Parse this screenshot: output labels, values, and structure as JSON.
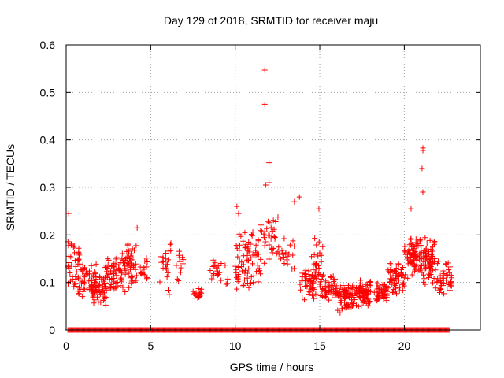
{
  "chart_data": {
    "type": "scatter",
    "title": "Day 129 of 2018, SRMTID for receiver maju",
    "xlabel": "GPS time / hours",
    "ylabel": "SRMTID / TECUs",
    "xlim": [
      0,
      24.5
    ],
    "ylim": [
      0,
      0.6
    ],
    "xticks": [
      0,
      5,
      10,
      15,
      20
    ],
    "xtick_labels": [
      "0",
      "5",
      "10",
      "15",
      "20"
    ],
    "yticks": [
      0,
      0.1,
      0.2,
      0.3,
      0.4,
      0.5,
      0.6
    ],
    "ytick_labels": [
      "0",
      "0.1",
      "0.2",
      "0.3",
      "0.4",
      "0.5",
      "0.6"
    ],
    "grid": true,
    "marker": "+",
    "series": [
      {
        "name": "SRMTID",
        "color": "#ff0000",
        "clusters": [
          {
            "x": [
              0.1,
              0.8
            ],
            "y": [
              0.08,
              0.2
            ],
            "n": 40
          },
          {
            "x": [
              0.7,
              1.8
            ],
            "y": [
              0.06,
              0.15
            ],
            "n": 55
          },
          {
            "x": [
              1.5,
              2.4
            ],
            "y": [
              0.05,
              0.12
            ],
            "n": 60
          },
          {
            "x": [
              2.3,
              3.3
            ],
            "y": [
              0.07,
              0.16
            ],
            "n": 60
          },
          {
            "x": [
              3.3,
              4.2
            ],
            "y": [
              0.07,
              0.19
            ],
            "n": 55
          },
          {
            "x": [
              4.2,
              4.8
            ],
            "y": [
              0.09,
              0.16
            ],
            "n": 15
          },
          {
            "x": [
              5.5,
              6.2
            ],
            "y": [
              0.05,
              0.2
            ],
            "n": 22
          },
          {
            "x": [
              6.5,
              7.0
            ],
            "y": [
              0.09,
              0.19
            ],
            "n": 12
          },
          {
            "x": [
              7.5,
              8.0
            ],
            "y": [
              0.06,
              0.09
            ],
            "n": 22
          },
          {
            "x": [
              8.5,
              9.2
            ],
            "y": [
              0.09,
              0.15
            ],
            "n": 20
          },
          {
            "x": [
              9.2,
              10.2
            ],
            "y": [
              0.08,
              0.14
            ],
            "n": 12
          },
          {
            "x": [
              10.0,
              11.5
            ],
            "y": [
              0.06,
              0.22
            ],
            "n": 70
          },
          {
            "x": [
              11.5,
              12.6
            ],
            "y": [
              0.13,
              0.25
            ],
            "n": 35
          },
          {
            "x": [
              12.5,
              13.5
            ],
            "y": [
              0.1,
              0.2
            ],
            "n": 20
          },
          {
            "x": [
              13.8,
              14.8
            ],
            "y": [
              0.05,
              0.15
            ],
            "n": 50
          },
          {
            "x": [
              14.5,
              15.2
            ],
            "y": [
              0.05,
              0.2
            ],
            "n": 25
          },
          {
            "x": [
              15.0,
              16.0
            ],
            "y": [
              0.05,
              0.12
            ],
            "n": 50
          },
          {
            "x": [
              16.0,
              17.0
            ],
            "y": [
              0.03,
              0.1
            ],
            "n": 70
          },
          {
            "x": [
              17.0,
              18.0
            ],
            "y": [
              0.04,
              0.11
            ],
            "n": 80
          },
          {
            "x": [
              18.2,
              19.0
            ],
            "y": [
              0.05,
              0.1
            ],
            "n": 45
          },
          {
            "x": [
              19.0,
              20.0
            ],
            "y": [
              0.06,
              0.15
            ],
            "n": 55
          },
          {
            "x": [
              20.0,
              21.0
            ],
            "y": [
              0.1,
              0.2
            ],
            "n": 80
          },
          {
            "x": [
              21.0,
              21.8
            ],
            "y": [
              0.08,
              0.2
            ],
            "n": 70
          },
          {
            "x": [
              21.8,
              22.8
            ],
            "y": [
              0.06,
              0.15
            ],
            "n": 45
          }
        ],
        "outliers": [
          {
            "x": 0.15,
            "y": 0.245
          },
          {
            "x": 4.2,
            "y": 0.215
          },
          {
            "x": 10.1,
            "y": 0.26
          },
          {
            "x": 10.2,
            "y": 0.245
          },
          {
            "x": 11.75,
            "y": 0.547
          },
          {
            "x": 11.75,
            "y": 0.475
          },
          {
            "x": 12.0,
            "y": 0.352
          },
          {
            "x": 12.0,
            "y": 0.31
          },
          {
            "x": 11.8,
            "y": 0.305
          },
          {
            "x": 13.5,
            "y": 0.27
          },
          {
            "x": 13.8,
            "y": 0.28
          },
          {
            "x": 14.95,
            "y": 0.255
          },
          {
            "x": 20.4,
            "y": 0.255
          },
          {
            "x": 21.1,
            "y": 0.383
          },
          {
            "x": 21.1,
            "y": 0.378
          },
          {
            "x": 21.05,
            "y": 0.34
          },
          {
            "x": 21.1,
            "y": 0.29
          }
        ],
        "zero_baseline": {
          "y": 0,
          "x_range": [
            0.1,
            22.7
          ],
          "step": 0.05
        }
      }
    ]
  }
}
